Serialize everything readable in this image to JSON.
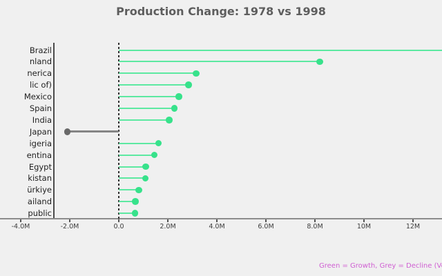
{
  "title": "Production Change: 1978 vs 1998",
  "footer_note": "Green = Growth, Grey = Decline (Volume in Tonnes)",
  "colors": {
    "background": "#f0f0f0",
    "growth_dot": "#37e28b",
    "growth_line": "#5ce9a1",
    "decline_dot": "#696969",
    "decline_line": "#858585",
    "axis": "#4a4a4a",
    "zero_line": "#2f2f2f",
    "title_text": "#5e5e5e",
    "note_text": "#cf5ed2"
  },
  "chart_data": {
    "type": "bar",
    "variant": "lollipop",
    "orientation": "horizontal",
    "title": "Production Change: 1978 vs 1998",
    "xlabel": "",
    "ylabel": "",
    "units": "M (millions, volume in tonnes)",
    "xlim": [
      -4.85,
      13.2
    ],
    "zero_reference_line": true,
    "grid": false,
    "legend_position": "none",
    "categories": [
      "Brazil",
      "nland",
      "nerica",
      "lic of)",
      "Mexico",
      "Spain",
      "India",
      "Japan",
      "igeria",
      "entina",
      "Egypt",
      "kistan",
      "ürkiye",
      "ailand",
      "public"
    ],
    "values": [
      13.9,
      8.2,
      3.15,
      2.85,
      2.45,
      2.27,
      2.05,
      -2.1,
      1.62,
      1.45,
      1.1,
      1.08,
      0.82,
      0.67,
      0.66
    ],
    "point_status": [
      "growth",
      "growth",
      "growth",
      "growth",
      "growth",
      "growth",
      "growth",
      "decline",
      "growth",
      "growth",
      "growth",
      "growth",
      "growth",
      "growth",
      "growth"
    ],
    "x_ticks": {
      "values": [
        -4,
        -2,
        0,
        2,
        4,
        6,
        8,
        10,
        12
      ],
      "labels": [
        "-4.0M",
        "-2.0M",
        "0.0",
        "2.0M",
        "4.0M",
        "6.0M",
        "8.0M",
        "10M",
        "12M"
      ]
    }
  }
}
